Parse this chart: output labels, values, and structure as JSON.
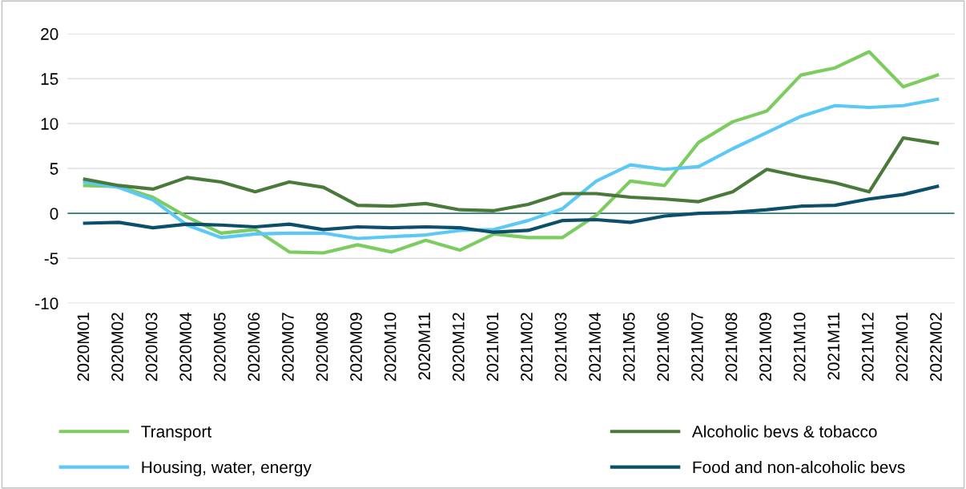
{
  "chart_data": {
    "type": "line",
    "categories": [
      "2020M01",
      "2020M02",
      "2020M03",
      "2020M04",
      "2020M05",
      "2020M06",
      "2020M07",
      "2020M08",
      "2020M09",
      "2020M10",
      "2020M11",
      "2020M12",
      "2021M01",
      "2021M02",
      "2021M03",
      "2021M04",
      "2021M05",
      "2021M06",
      "2021M07",
      "2021M08",
      "2021M09",
      "2021M10",
      "2021M11",
      "2021M12",
      "2022M01",
      "2022M02"
    ],
    "series": [
      {
        "name": "Transport",
        "color": "#7dcc5f",
        "values": [
          3.1,
          3.0,
          1.8,
          -0.4,
          -2.2,
          -1.8,
          -4.3,
          -4.4,
          -3.5,
          -4.3,
          -3.0,
          -4.1,
          -2.3,
          -2.7,
          -2.7,
          -0.2,
          3.6,
          3.1,
          7.9,
          10.2,
          11.4,
          15.4,
          16.2,
          18.0,
          14.1,
          15.4
        ]
      },
      {
        "name": "Housing, water, energy",
        "color": "#5bc8f5",
        "values": [
          3.5,
          2.9,
          1.5,
          -1.3,
          -2.7,
          -2.3,
          -2.2,
          -2.2,
          -2.8,
          -2.6,
          -2.4,
          -1.9,
          -1.8,
          -0.8,
          0.5,
          3.6,
          5.4,
          4.9,
          5.2,
          7.2,
          9.0,
          10.8,
          12.0,
          11.8,
          12.0,
          12.7
        ]
      },
      {
        "name": "Alcoholic bevs & tobacco",
        "color": "#4a7a3a",
        "values": [
          3.8,
          3.1,
          2.7,
          4.0,
          3.5,
          2.4,
          3.5,
          2.9,
          0.9,
          0.8,
          1.1,
          0.4,
          0.3,
          1.0,
          2.2,
          2.2,
          1.8,
          1.6,
          1.3,
          2.4,
          4.9,
          4.1,
          3.4,
          2.4,
          8.4,
          7.8
        ]
      },
      {
        "name": "Food and non-alcoholic bevs",
        "color": "#0d4f6b",
        "values": [
          -1.1,
          -1.0,
          -1.6,
          -1.2,
          -1.3,
          -1.5,
          -1.2,
          -1.8,
          -1.5,
          -1.6,
          -1.5,
          -1.6,
          -2.1,
          -1.9,
          -0.8,
          -0.7,
          -1.0,
          -0.3,
          0.0,
          0.1,
          0.4,
          0.8,
          0.9,
          1.6,
          2.1,
          3.0
        ]
      }
    ],
    "ylim": [
      -10,
      20
    ],
    "yticks": [
      -10,
      -5,
      0,
      5,
      10,
      15,
      20
    ],
    "ref_lines": [
      {
        "axis": "y",
        "value": 0,
        "color": "#2e7d7d"
      }
    ],
    "grid": "y",
    "legend": "bottom",
    "marker": "none",
    "line_style": "solid"
  }
}
